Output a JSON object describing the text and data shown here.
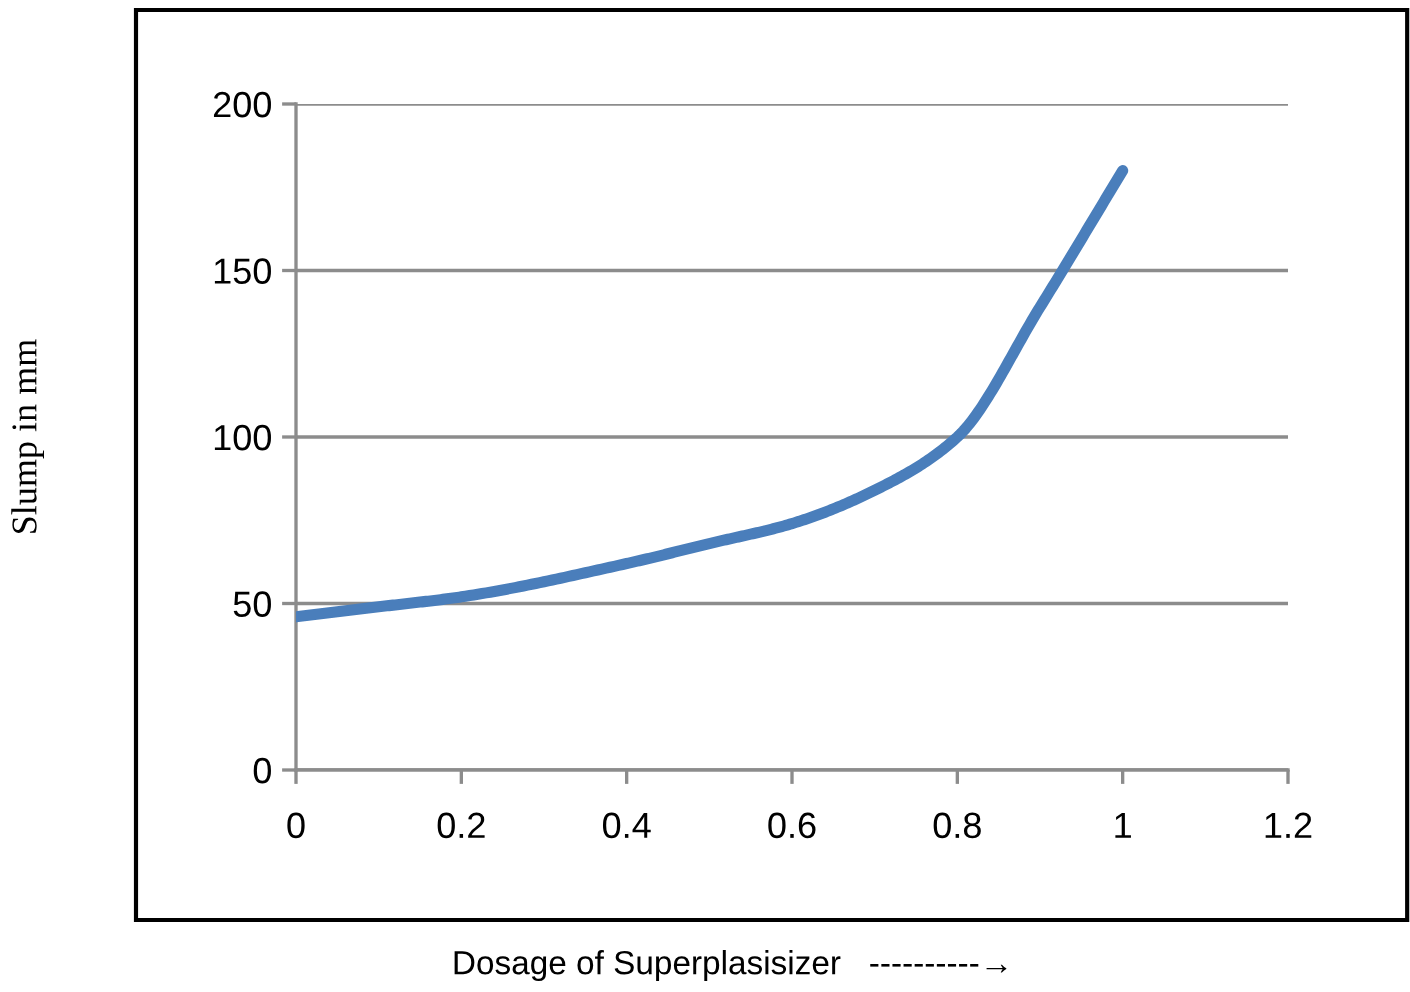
{
  "chart_data": {
    "type": "line",
    "xlabel": "Dosage of Superplasisizer   ----------→",
    "ylabel": "Slump in mm",
    "x": [
      0,
      0.1,
      0.2,
      0.4,
      0.5,
      0.6,
      0.7,
      0.8,
      0.9,
      1.0
    ],
    "series": [
      {
        "color": "#4a7ebb",
        "values": [
          46,
          49,
          52,
          62,
          68,
          74,
          84,
          100,
          139,
          180
        ]
      }
    ],
    "xlim": [
      0,
      1.2
    ],
    "xticks": [
      0,
      0.2,
      0.4,
      0.6,
      0.8,
      1,
      1.2
    ],
    "ylim": [
      0,
      200
    ],
    "yticks": [
      0,
      50,
      100,
      150,
      200
    ],
    "grid": "y",
    "marker": "none",
    "line_style": "solid"
  }
}
